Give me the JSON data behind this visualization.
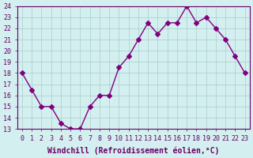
{
  "x_values": [
    0,
    1,
    2,
    3,
    4,
    5,
    6,
    7,
    8,
    9,
    10,
    11,
    12,
    13,
    14,
    15,
    16,
    17,
    18,
    19,
    20,
    21,
    22,
    23
  ],
  "y_values": [
    18,
    16.5,
    15,
    15,
    13.5,
    13,
    13,
    15,
    16,
    16,
    18.5,
    19.5,
    21,
    22.5,
    21.5,
    22.5,
    22.5,
    24,
    22.5,
    23,
    22,
    21,
    19.5,
    18
  ],
  "line_color": "#800080",
  "marker": "D",
  "marker_size": 3,
  "bg_color": "#d4efef",
  "grid_color": "#aacccc",
  "xlabel": "Windchill (Refroidissement éolien,°C)",
  "ylabel": "",
  "xlim": [
    -0.5,
    23.5
  ],
  "ylim": [
    13,
    24
  ],
  "yticks": [
    13,
    14,
    15,
    16,
    17,
    18,
    19,
    20,
    21,
    22,
    23,
    24
  ],
  "xticks": [
    0,
    1,
    2,
    3,
    4,
    5,
    6,
    7,
    8,
    9,
    10,
    11,
    12,
    13,
    14,
    15,
    16,
    17,
    18,
    19,
    20,
    21,
    22,
    23
  ],
  "tick_label_size": 6,
  "xlabel_size": 7,
  "axis_color": "#660066",
  "spine_color": "#660066"
}
